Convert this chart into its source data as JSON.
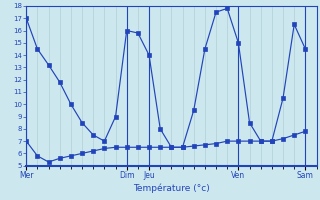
{
  "xlabel": "Température (°c)",
  "background_color": "#cce8ee",
  "grid_color": "#aac8d0",
  "line_color": "#2244bb",
  "ylim": [
    5,
    18
  ],
  "yticks": [
    5,
    6,
    7,
    8,
    9,
    10,
    11,
    12,
    13,
    14,
    15,
    16,
    17,
    18
  ],
  "day_labels": [
    "Mer",
    "Dim",
    "Jeu",
    "Ven",
    "Sam"
  ],
  "day_positions": [
    0,
    9,
    11,
    19,
    25
  ],
  "xlim": [
    0,
    26
  ],
  "series1_x": [
    0,
    1,
    2,
    3,
    4,
    5,
    6,
    7,
    8,
    9,
    10,
    11,
    12,
    13,
    14,
    15,
    16,
    17,
    18,
    19,
    20,
    21,
    22,
    23,
    24,
    25
  ],
  "series1_y": [
    17,
    14.5,
    13.2,
    11.8,
    10.0,
    8.5,
    7.5,
    7.0,
    9.0,
    16.0,
    15.8,
    14.0,
    8.0,
    6.5,
    6.5,
    9.5,
    14.5,
    17.5,
    17.8,
    15.0,
    8.5,
    7.0,
    7.0,
    10.5,
    16.5,
    14.5
  ],
  "series2_x": [
    0,
    1,
    2,
    3,
    4,
    5,
    6,
    7,
    8,
    9,
    10,
    11,
    12,
    13,
    14,
    15,
    16,
    17,
    18,
    19,
    20,
    21,
    22,
    23,
    24,
    25
  ],
  "series2_y": [
    7.0,
    5.8,
    5.3,
    5.6,
    5.8,
    6.0,
    6.2,
    6.4,
    6.5,
    6.5,
    6.5,
    6.5,
    6.5,
    6.5,
    6.5,
    6.6,
    6.7,
    6.8,
    7.0,
    7.0,
    7.0,
    7.0,
    7.0,
    7.2,
    7.5,
    7.8
  ]
}
